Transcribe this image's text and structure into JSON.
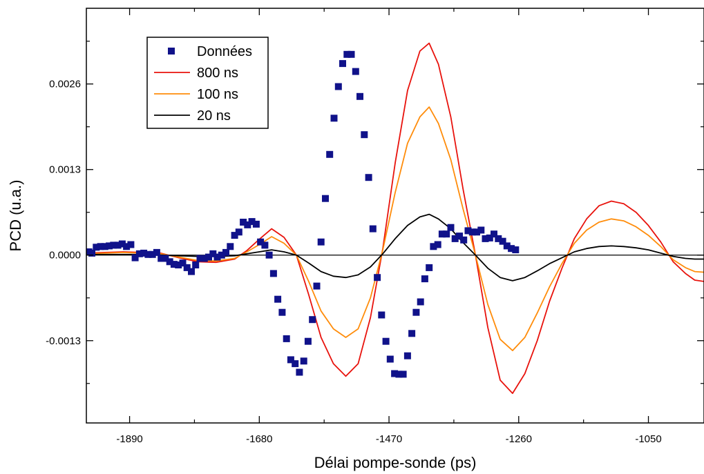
{
  "chart_data": {
    "type": "line",
    "xlabel": "Délai pompe-sonde (ps)",
    "ylabel": "PCD (u.a.)",
    "xlim": [
      -1960,
      -960
    ],
    "ylim": [
      -0.00255,
      0.00375
    ],
    "x_ticks": [
      -1890,
      -1680,
      -1470,
      -1260,
      -1050
    ],
    "x_tick_labels": [
      "-1890",
      "-1680",
      "-1470",
      "-1260",
      "-1050"
    ],
    "y_ticks": [
      -0.0013,
      0.0,
      0.0013,
      0.0026
    ],
    "y_tick_labels": [
      "-0.0013",
      "0.0000",
      "0.0013",
      "0.0026"
    ],
    "zero_line": true,
    "grid": false,
    "legend_position": "top-left",
    "series": [
      {
        "name": "Données",
        "kind": "scatter",
        "marker": "square",
        "color": "#10128a",
        "points": [
          [
            -1956,
            5e-05
          ],
          [
            -1951,
            3e-05
          ],
          [
            -1944,
            0.00012
          ],
          [
            -1937,
            0.00013
          ],
          [
            -1930,
            0.00013
          ],
          [
            -1923,
            0.00014
          ],
          [
            -1916,
            0.00015
          ],
          [
            -1909,
            0.00015
          ],
          [
            -1902,
            0.00017
          ],
          [
            -1895,
            0.00013
          ],
          [
            -1888,
            0.00016
          ],
          [
            -1881,
            -4e-05
          ],
          [
            -1874,
            2e-05
          ],
          [
            -1867,
            3e-05
          ],
          [
            -1860,
            1e-05
          ],
          [
            -1853,
            1e-05
          ],
          [
            -1846,
            4e-05
          ],
          [
            -1839,
            -5e-05
          ],
          [
            -1832,
            -5e-05
          ],
          [
            -1825,
            -0.0001
          ],
          [
            -1818,
            -0.00014
          ],
          [
            -1811,
            -0.00015
          ],
          [
            -1804,
            -0.00012
          ],
          [
            -1797,
            -0.00019
          ],
          [
            -1790,
            -0.00025
          ],
          [
            -1783,
            -0.00015
          ],
          [
            -1776,
            -5e-05
          ],
          [
            -1769,
            -5e-05
          ],
          [
            -1762,
            -3e-05
          ],
          [
            -1755,
            2e-05
          ],
          [
            -1748,
            -3e-05
          ],
          [
            -1741,
            0.0
          ],
          [
            -1734,
            4e-05
          ],
          [
            -1727,
            0.00013
          ],
          [
            -1720,
            0.0003
          ],
          [
            -1713,
            0.00035
          ],
          [
            -1706,
            0.0005
          ],
          [
            -1699,
            0.00046
          ],
          [
            -1692,
            0.00051
          ],
          [
            -1685,
            0.00047
          ],
          [
            -1678,
            0.0002
          ],
          [
            -1671,
            0.00015
          ],
          [
            -1664,
            0.0
          ],
          [
            -1657,
            -0.00028
          ],
          [
            -1650,
            -0.00067
          ],
          [
            -1643,
            -0.00087
          ],
          [
            -1636,
            -0.00127
          ],
          [
            -1629,
            -0.00159
          ],
          [
            -1622,
            -0.00165
          ],
          [
            -1615,
            -0.00178
          ],
          [
            -1608,
            -0.00161
          ],
          [
            -1601,
            -0.00131
          ],
          [
            -1594,
            -0.00098
          ],
          [
            -1587,
            -0.00047
          ],
          [
            -1580,
            0.0002
          ],
          [
            -1573,
            0.00086
          ],
          [
            -1566,
            0.00153
          ],
          [
            -1559,
            0.00208
          ],
          [
            -1552,
            0.00256
          ],
          [
            -1545,
            0.00291
          ],
          [
            -1538,
            0.00305
          ],
          [
            -1531,
            0.00305
          ],
          [
            -1524,
            0.00279
          ],
          [
            -1517,
            0.00241
          ],
          [
            -1510,
            0.00183
          ],
          [
            -1503,
            0.00118
          ],
          [
            -1496,
            0.0004
          ],
          [
            -1489,
            -0.00034
          ],
          [
            -1482,
            -0.00091
          ],
          [
            -1475,
            -0.00131
          ],
          [
            -1468,
            -0.00158
          ],
          [
            -1461,
            -0.0018
          ],
          [
            -1454,
            -0.00181
          ],
          [
            -1447,
            -0.00181
          ],
          [
            -1440,
            -0.00153
          ],
          [
            -1433,
            -0.00119
          ],
          [
            -1426,
            -0.00087
          ],
          [
            -1419,
            -0.00071
          ],
          [
            -1412,
            -0.00036
          ],
          [
            -1405,
            -0.00019
          ],
          [
            -1398,
            0.00013
          ],
          [
            -1391,
            0.00016
          ],
          [
            -1384,
            0.00032
          ],
          [
            -1377,
            0.00032
          ],
          [
            -1370,
            0.00042
          ],
          [
            -1363,
            0.00025
          ],
          [
            -1356,
            0.00029
          ],
          [
            -1349,
            0.00023
          ],
          [
            -1342,
            0.00037
          ],
          [
            -1335,
            0.00035
          ],
          [
            -1328,
            0.00035
          ],
          [
            -1321,
            0.00038
          ],
          [
            -1314,
            0.00025
          ],
          [
            -1307,
            0.00026
          ],
          [
            -1300,
            0.00032
          ],
          [
            -1293,
            0.00025
          ],
          [
            -1286,
            0.00021
          ],
          [
            -1279,
            0.00014
          ],
          [
            -1272,
            0.0001
          ],
          [
            -1265,
            8e-05
          ]
        ]
      },
      {
        "name": "800 ns",
        "kind": "line",
        "color": "#e8120c",
        "points": [
          [
            -1960,
            3e-05
          ],
          [
            -1930,
            4e-05
          ],
          [
            -1900,
            5e-05
          ],
          [
            -1870,
            4e-05
          ],
          [
            -1840,
            3e-05
          ],
          [
            -1810,
            -4e-05
          ],
          [
            -1780,
            -0.0001
          ],
          [
            -1750,
            -0.00011
          ],
          [
            -1720,
            -6e-05
          ],
          [
            -1700,
            7e-05
          ],
          [
            -1680,
            0.00024
          ],
          [
            -1660,
            0.0004
          ],
          [
            -1640,
            0.00027
          ],
          [
            -1620,
            0.0
          ],
          [
            -1600,
            -0.0006
          ],
          [
            -1580,
            -0.00125
          ],
          [
            -1560,
            -0.00165
          ],
          [
            -1540,
            -0.00184
          ],
          [
            -1520,
            -0.00165
          ],
          [
            -1500,
            -0.00095
          ],
          [
            -1480,
            0.0001
          ],
          [
            -1460,
            0.0014
          ],
          [
            -1440,
            0.0025
          ],
          [
            -1420,
            0.0031
          ],
          [
            -1405,
            0.00322
          ],
          [
            -1390,
            0.0029
          ],
          [
            -1370,
            0.0021
          ],
          [
            -1350,
            0.001
          ],
          [
            -1330,
            0.0
          ],
          [
            -1310,
            -0.0011
          ],
          [
            -1290,
            -0.0019
          ],
          [
            -1270,
            -0.0021
          ],
          [
            -1250,
            -0.0018
          ],
          [
            -1230,
            -0.0013
          ],
          [
            -1210,
            -0.0007
          ],
          [
            -1190,
            -0.0002
          ],
          [
            -1170,
            0.00025
          ],
          [
            -1150,
            0.00055
          ],
          [
            -1130,
            0.00075
          ],
          [
            -1110,
            0.00082
          ],
          [
            -1090,
            0.00078
          ],
          [
            -1070,
            0.00065
          ],
          [
            -1050,
            0.00045
          ],
          [
            -1030,
            0.0002
          ],
          [
            -1010,
            -0.0001
          ],
          [
            -990,
            -0.00028
          ],
          [
            -975,
            -0.00038
          ],
          [
            -960,
            -0.0004
          ]
        ]
      },
      {
        "name": "100 ns",
        "kind": "line",
        "color": "#ff8c0a",
        "points": [
          [
            -1960,
            2e-05
          ],
          [
            -1930,
            3e-05
          ],
          [
            -1900,
            4e-05
          ],
          [
            -1870,
            3e-05
          ],
          [
            -1840,
            2e-05
          ],
          [
            -1810,
            -3e-05
          ],
          [
            -1780,
            -8e-05
          ],
          [
            -1750,
            -9e-05
          ],
          [
            -1720,
            -5e-05
          ],
          [
            -1700,
            5e-05
          ],
          [
            -1680,
            0.00016
          ],
          [
            -1660,
            0.00028
          ],
          [
            -1640,
            0.00018
          ],
          [
            -1620,
            0.0
          ],
          [
            -1600,
            -0.0004
          ],
          [
            -1580,
            -0.00085
          ],
          [
            -1560,
            -0.00112
          ],
          [
            -1540,
            -0.00125
          ],
          [
            -1520,
            -0.00112
          ],
          [
            -1500,
            -0.00065
          ],
          [
            -1480,
            8e-05
          ],
          [
            -1460,
            0.00095
          ],
          [
            -1440,
            0.0017
          ],
          [
            -1420,
            0.0021
          ],
          [
            -1405,
            0.00225
          ],
          [
            -1390,
            0.002
          ],
          [
            -1370,
            0.00145
          ],
          [
            -1350,
            0.0007
          ],
          [
            -1330,
            0.0
          ],
          [
            -1310,
            -0.00075
          ],
          [
            -1290,
            -0.00128
          ],
          [
            -1270,
            -0.00145
          ],
          [
            -1250,
            -0.00125
          ],
          [
            -1230,
            -0.00088
          ],
          [
            -1210,
            -0.00048
          ],
          [
            -1190,
            -0.00013
          ],
          [
            -1170,
            0.00018
          ],
          [
            -1150,
            0.00038
          ],
          [
            -1130,
            0.0005
          ],
          [
            -1110,
            0.00055
          ],
          [
            -1090,
            0.00052
          ],
          [
            -1070,
            0.00043
          ],
          [
            -1050,
            0.0003
          ],
          [
            -1030,
            0.00013
          ],
          [
            -1010,
            -7e-05
          ],
          [
            -990,
            -0.00019
          ],
          [
            -975,
            -0.00025
          ],
          [
            -960,
            -0.00026
          ]
        ]
      },
      {
        "name": "20 ns",
        "kind": "line",
        "color": "#000000",
        "points": [
          [
            -1960,
            1e-05
          ],
          [
            -1930,
            1e-05
          ],
          [
            -1900,
            1e-05
          ],
          [
            -1870,
            1e-05
          ],
          [
            -1840,
            0.0
          ],
          [
            -1810,
            -1e-05
          ],
          [
            -1780,
            -2e-05
          ],
          [
            -1750,
            -2e-05
          ],
          [
            -1720,
            -1e-05
          ],
          [
            -1700,
            2e-05
          ],
          [
            -1680,
            5e-05
          ],
          [
            -1660,
            8e-05
          ],
          [
            -1640,
            5e-05
          ],
          [
            -1620,
            0.0
          ],
          [
            -1600,
            -0.00012
          ],
          [
            -1580,
            -0.00025
          ],
          [
            -1560,
            -0.00032
          ],
          [
            -1540,
            -0.00034
          ],
          [
            -1520,
            -0.0003
          ],
          [
            -1500,
            -0.00018
          ],
          [
            -1480,
            2e-05
          ],
          [
            -1460,
            0.00025
          ],
          [
            -1440,
            0.00045
          ],
          [
            -1420,
            0.00058
          ],
          [
            -1405,
            0.00062
          ],
          [
            -1390,
            0.00055
          ],
          [
            -1370,
            0.0004
          ],
          [
            -1350,
            0.00019
          ],
          [
            -1330,
            0.0
          ],
          [
            -1310,
            -0.0002
          ],
          [
            -1290,
            -0.00034
          ],
          [
            -1270,
            -0.00039
          ],
          [
            -1250,
            -0.00034
          ],
          [
            -1230,
            -0.00024
          ],
          [
            -1210,
            -0.00013
          ],
          [
            -1190,
            -4e-05
          ],
          [
            -1170,
            5e-05
          ],
          [
            -1150,
            0.0001
          ],
          [
            -1130,
            0.00013
          ],
          [
            -1110,
            0.00014
          ],
          [
            -1090,
            0.00013
          ],
          [
            -1070,
            0.00011
          ],
          [
            -1050,
            8e-05
          ],
          [
            -1030,
            3e-05
          ],
          [
            -1010,
            -2e-05
          ],
          [
            -990,
            -5e-05
          ],
          [
            -975,
            -6e-05
          ],
          [
            -960,
            -6e-05
          ]
        ]
      }
    ]
  }
}
